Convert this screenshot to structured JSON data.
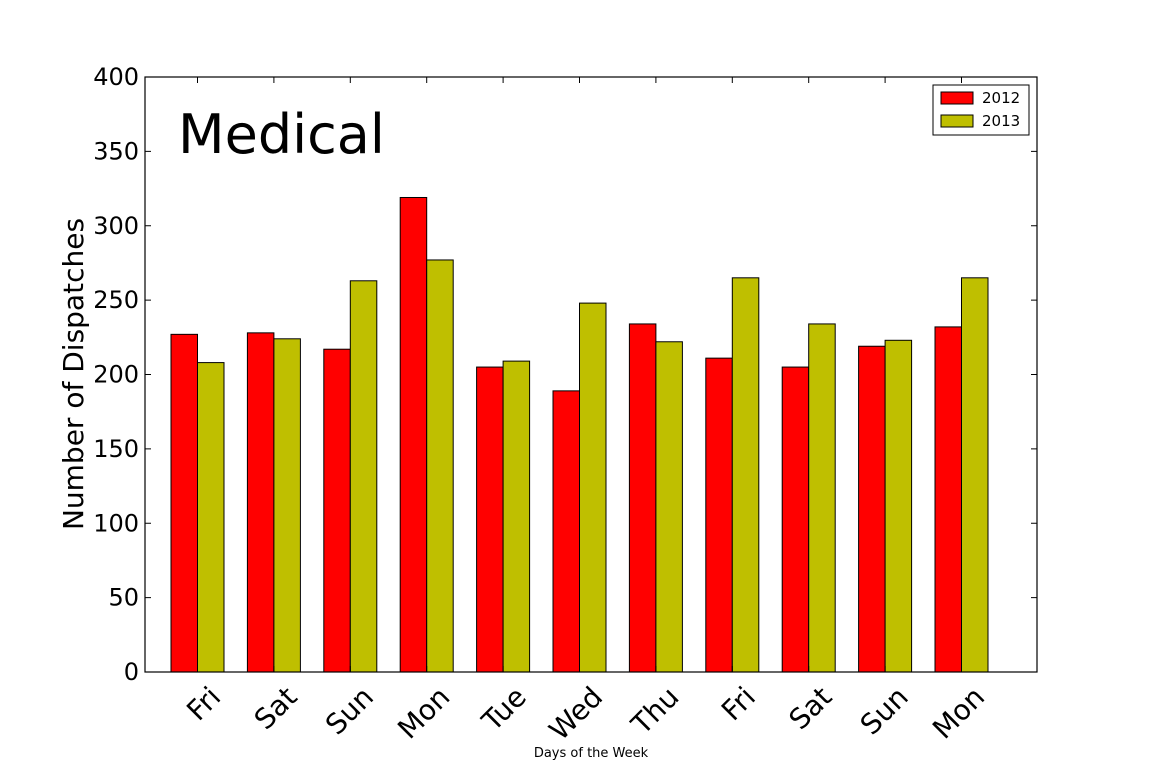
{
  "chart_data": {
    "type": "bar",
    "title": "Medical",
    "xlabel": "Days of the Week",
    "ylabel": "Number of Dispatches",
    "categories": [
      "Fri",
      "Sat",
      "Sun",
      "Mon",
      "Tue",
      "Wed",
      "Thu",
      "Fri",
      "Sat",
      "Sun",
      "Mon"
    ],
    "series": [
      {
        "name": "2012",
        "color": "#ff0000",
        "values": [
          227,
          228,
          217,
          319,
          205,
          189,
          234,
          211,
          205,
          219,
          232
        ]
      },
      {
        "name": "2013",
        "color": "#bfbf00",
        "values": [
          208,
          224,
          263,
          277,
          209,
          248,
          222,
          265,
          234,
          223,
          265
        ]
      }
    ],
    "ylim": [
      0,
      400
    ],
    "yticks": [
      0,
      50,
      100,
      150,
      200,
      250,
      300,
      350,
      400
    ],
    "grid": false,
    "legend_position": "top-right"
  }
}
